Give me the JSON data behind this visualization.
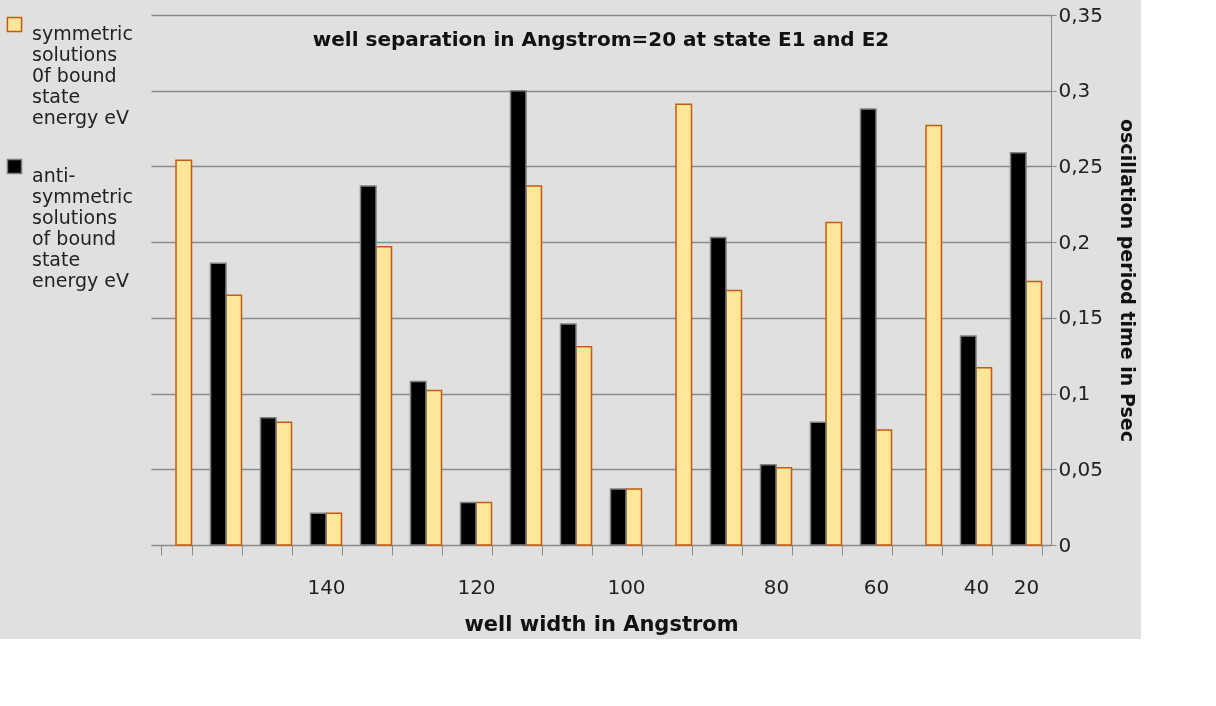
{
  "chart_data": {
    "type": "bar",
    "title": "well separation in Angstrom=20 at state E1 and E2",
    "xlabel": "well width in Angstrom",
    "y2label": "oscillation period time in Psec",
    "categories": [
      null,
      null,
      null,
      "140",
      null,
      null,
      "120",
      null,
      null,
      "100",
      null,
      null,
      "80",
      null,
      "60",
      null,
      "40",
      "20"
    ],
    "series": [
      {
        "name": "symmetric solutions 0f bound state energy eV",
        "color": "#ffe699",
        "axis": "y2",
        "values": [
          0.254,
          0.165,
          0.081,
          0.021,
          0.197,
          0.102,
          0.028,
          0.237,
          0.131,
          0.037,
          0.291,
          0.168,
          0.051,
          0.213,
          0.076,
          0.277,
          0.117,
          0.174
        ]
      },
      {
        "name": "anti-symmetric solutions of bound state energy eV",
        "color": "#000000",
        "axis": "y2",
        "values": [
          null,
          0.186,
          0.084,
          0.021,
          0.237,
          0.108,
          0.028,
          0.3,
          0.146,
          0.037,
          null,
          0.203,
          0.053,
          0.081,
          0.288,
          null,
          0.138,
          0.259
        ]
      }
    ],
    "y2lim": [
      0,
      0.35
    ],
    "y2ticks": [
      0,
      {
        "value": 0.05,
        "label": "0,05"
      },
      {
        "value": 0.1,
        "label": "0,1"
      },
      {
        "value": 0.15,
        "label": "0,15"
      },
      {
        "value": 0.2,
        "label": "0,2"
      },
      {
        "value": 0.25,
        "label": "0,25"
      },
      {
        "value": 0.3,
        "label": "0,3"
      },
      {
        "value": 0.35,
        "label": "0,35"
      }
    ],
    "grid": "y",
    "legend": "left"
  }
}
